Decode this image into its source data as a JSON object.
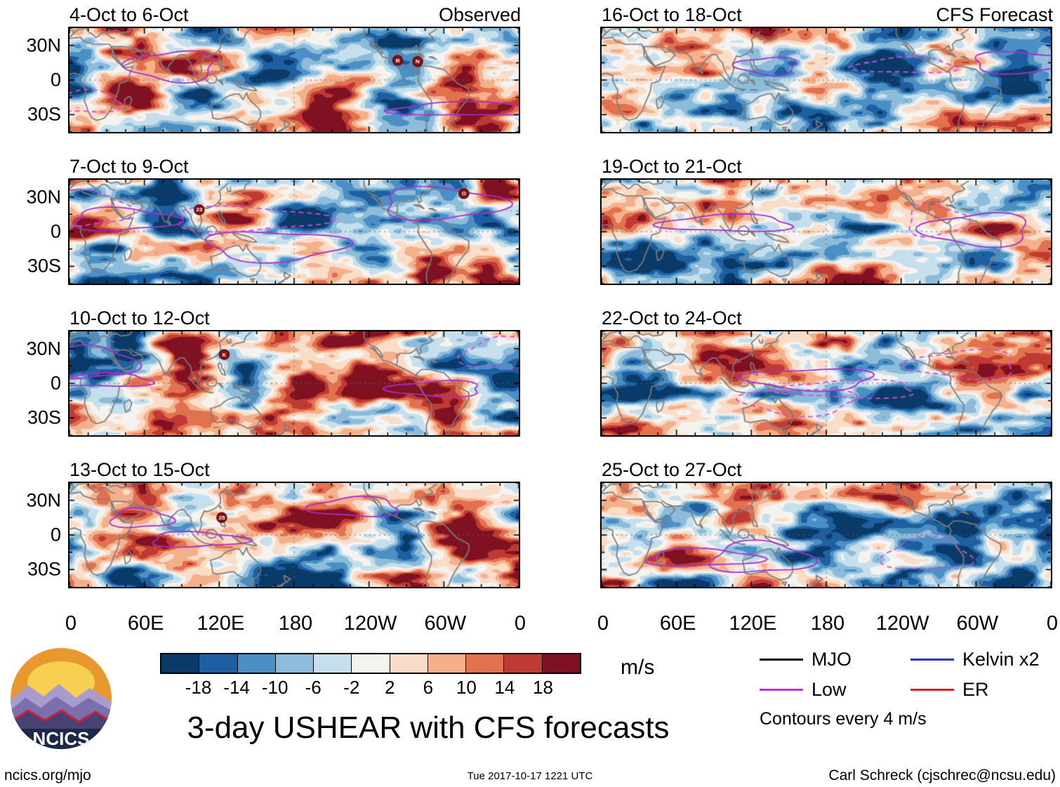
{
  "title": "3-day USHEAR with CFS forecasts",
  "logo_text": "NCICS",
  "panels": [
    {
      "title": "4-Oct to 6-Oct",
      "corner_label": "Observed",
      "storms": [
        {
          "label": "R",
          "lon": 263,
          "lat": 17
        },
        {
          "label": "N",
          "lon": 279,
          "lat": 16
        }
      ]
    },
    {
      "title": "16-Oct to 18-Oct",
      "corner_label": "CFS Forecast",
      "storms": []
    },
    {
      "title": "7-Oct to 9-Oct",
      "corner_label": "",
      "storms": [
        {
          "label": "23",
          "lon": 104,
          "lat": 19
        },
        {
          "label": "O",
          "lon": 316,
          "lat": 33
        }
      ]
    },
    {
      "title": "19-Oct to 21-Oct",
      "corner_label": "",
      "storms": []
    },
    {
      "title": "10-Oct to 12-Oct",
      "corner_label": "",
      "storms": [
        {
          "label": "K",
          "lon": 124,
          "lat": 25
        }
      ]
    },
    {
      "title": "22-Oct to 24-Oct",
      "corner_label": "",
      "storms": []
    },
    {
      "title": "13-Oct to 15-Oct",
      "corner_label": "",
      "storms": [
        {
          "label": "25",
          "lon": 122,
          "lat": 15
        }
      ]
    },
    {
      "title": "25-Oct to 27-Oct",
      "corner_label": "",
      "storms": []
    }
  ],
  "axes": {
    "y_ticks": [
      "30N",
      "0",
      "30S"
    ],
    "x_ticks": [
      "0",
      "60E",
      "120E",
      "180",
      "120W",
      "60W",
      "0"
    ]
  },
  "colorbar": {
    "ticks": [
      "-18",
      "-14",
      "-10",
      "-6",
      "-2",
      "2",
      "6",
      "10",
      "14",
      "18"
    ],
    "colors": [
      "#0a3a67",
      "#1d5fa0",
      "#4a90c4",
      "#8cbcd9",
      "#c6dfec",
      "#f4f3ef",
      "#f9ddc8",
      "#f4b08a",
      "#e2714f",
      "#c03a34",
      "#7f1122"
    ],
    "units": "m/s"
  },
  "legend": {
    "items": [
      {
        "label": "MJO",
        "color": "#000000"
      },
      {
        "label": "Kelvin x2",
        "color": "#2a35c8"
      },
      {
        "label": "Low",
        "color": "#bb33dd"
      },
      {
        "label": "ER",
        "color": "#dd2222"
      }
    ],
    "note": "Contours every 4 m/s"
  },
  "footer": {
    "left": "ncics.org/mjo",
    "center": "Tue 2017-10-17 1221 UTC",
    "right": "Carl Schreck (cjschrec@ncsu.edu)"
  },
  "chart_data": {
    "type": "heatmap",
    "title": "3-day USHEAR with CFS forecasts",
    "units": "m/s",
    "lon_domain": [
      0,
      360
    ],
    "x_tick_labels": [
      "0",
      "60E",
      "120E",
      "180",
      "120W",
      "60W",
      "0"
    ],
    "y_tick_labels": [
      "30N",
      "0",
      "30S"
    ],
    "color_levels": [
      -18,
      -14,
      -10,
      -6,
      -2,
      2,
      6,
      10,
      14,
      18
    ],
    "palette": [
      "#0a3a67",
      "#1d5fa0",
      "#4a90c4",
      "#8cbcd9",
      "#c6dfec",
      "#f4f3ef",
      "#f9ddc8",
      "#f4b08a",
      "#e2714f",
      "#c03a34",
      "#7f1122"
    ],
    "contour_interval": "Contours every 4 m/s",
    "legend_entries": [
      "MJO",
      "Low",
      "Kelvin x2",
      "ER"
    ],
    "panels": [
      {
        "period": "4-Oct to 6-Oct",
        "source": "Observed",
        "storm_markers": [
          "R",
          "N"
        ]
      },
      {
        "period": "7-Oct to 9-Oct",
        "source": "Observed",
        "storm_markers": [
          "23",
          "O"
        ]
      },
      {
        "period": "10-Oct to 12-Oct",
        "source": "Observed",
        "storm_markers": [
          "K"
        ]
      },
      {
        "period": "13-Oct to 15-Oct",
        "source": "Observed",
        "storm_markers": [
          "25"
        ]
      },
      {
        "period": "16-Oct to 18-Oct",
        "source": "CFS Forecast",
        "storm_markers": []
      },
      {
        "period": "19-Oct to 21-Oct",
        "source": "CFS Forecast",
        "storm_markers": []
      },
      {
        "period": "22-Oct to 24-Oct",
        "source": "CFS Forecast",
        "storm_markers": []
      },
      {
        "period": "25-Oct to 27-Oct",
        "source": "CFS Forecast",
        "storm_markers": []
      }
    ]
  }
}
